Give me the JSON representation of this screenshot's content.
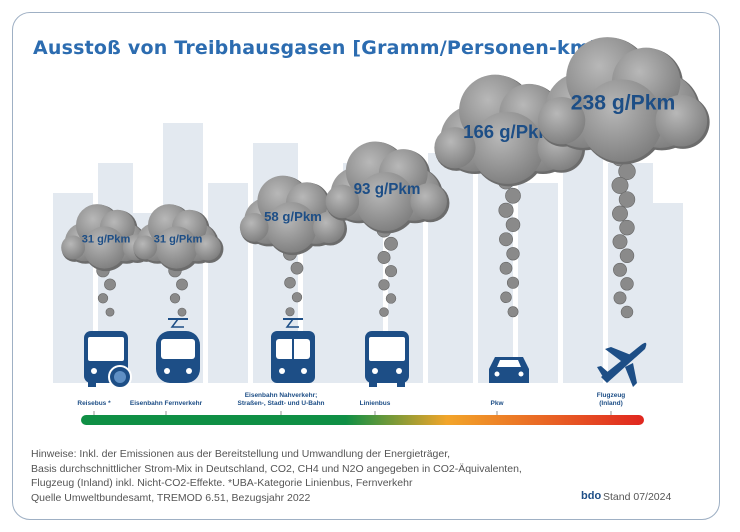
{
  "title": "Ausstoß von Treibhausgasen [Gramm/Personen-km]",
  "chart_data": {
    "type": "bar",
    "title": "Ausstoß von Treibhausgasen [Gramm/Personen-km]",
    "unit": "g/Pkm",
    "categories": [
      "Reisebus *",
      "Eisenbahn Fernverkehr",
      "Eisenbahn Nahverkehr; Straßen-, Stadt- und U-Bahn",
      "Linienbus",
      "Pkw",
      "Flugzeug (Inland)"
    ],
    "values": [
      31,
      31,
      58,
      93,
      166,
      238
    ],
    "data_labels": [
      "31 g/Pkm",
      "31 g/Pkm",
      "58 g/Pkm",
      "93 g/Pkm",
      "166 g/Pkm",
      "238 g/Pkm"
    ],
    "icons": [
      "coach-bus-globe-icon",
      "train-icon",
      "tram-icon",
      "bus-icon",
      "car-icon",
      "airplane-icon"
    ],
    "scale_gradient": [
      "#0f8f45",
      "#0f8f45",
      "#f2a52a",
      "#e0261f"
    ]
  },
  "labels": [
    "Reisebus *",
    "Eisenbahn Fernverkehr",
    "Eisenbahn Nahverkehr;\nStraßen-, Stadt- und U-Bahn",
    "Linienbus",
    "Pkw",
    "Flugzeug\n(Inland)"
  ],
  "notes": [
    "Hinweise: Inkl. der Emissionen aus der Bereitstellung und Umwandlung der Energieträger,",
    "Basis durchschnittlicher Strom-Mix in Deutschland, CO2, CH4 und N2O angegeben in CO2-Äquivalenten,",
    "Flugzeug (Inland) inkl. Nicht-CO2-Effekte. *UBA-Kategorie Linienbus, Fernverkehr",
    "Quelle Umweltbundesamt, TREMOD 6.51, Bezugsjahr 2022"
  ],
  "footer": {
    "logo": "bdo",
    "stand": "Stand 07/2024"
  },
  "colors": {
    "title": "#2c6cb0",
    "icon": "#1d4e86",
    "cloud": "#8e8e8e",
    "skyline": "#e3e9f0"
  }
}
